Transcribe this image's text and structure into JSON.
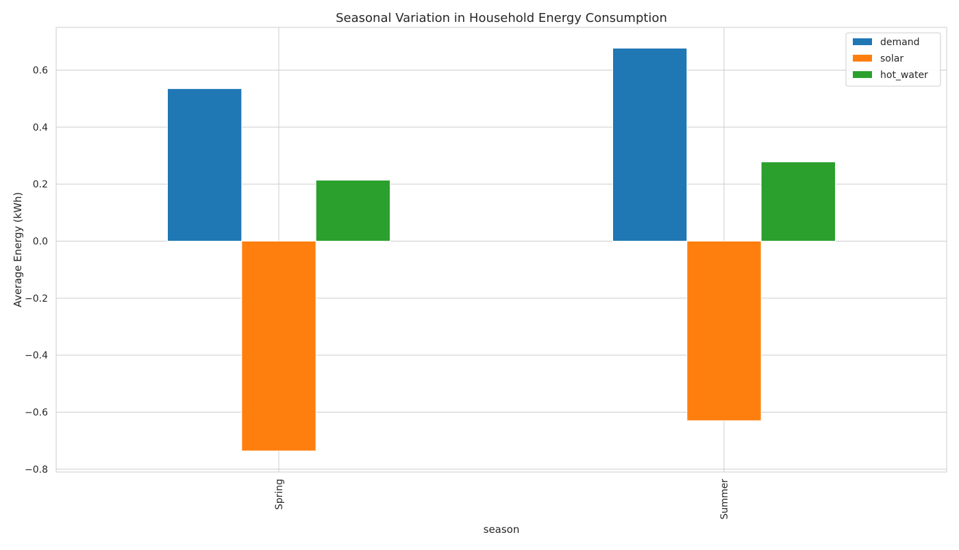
{
  "chart_data": {
    "type": "bar",
    "title": "Seasonal Variation in Household Energy Consumption",
    "xlabel": "season",
    "ylabel": "Average Energy (kWh)",
    "categories": [
      "Spring",
      "Summer"
    ],
    "series": [
      {
        "name": "demand",
        "color": "#1f77b4",
        "values": [
          0.535,
          0.677
        ]
      },
      {
        "name": "solar",
        "color": "#ff7f0e",
        "values": [
          -0.736,
          -0.63
        ]
      },
      {
        "name": "hot_water",
        "color": "#2ca02c",
        "values": [
          0.214,
          0.278
        ]
      }
    ],
    "ylim": [
      -0.81,
      0.75
    ],
    "yticks": [
      -0.8,
      -0.6,
      -0.4,
      -0.2,
      0.0,
      0.2,
      0.4,
      0.6
    ],
    "ytick_labels": [
      "−0.8",
      "−0.6",
      "−0.4",
      "−0.2",
      "0.0",
      "0.2",
      "0.4",
      "0.6"
    ],
    "grid": true,
    "legend_position": "top-right",
    "xtick_rotation": "vertical"
  }
}
